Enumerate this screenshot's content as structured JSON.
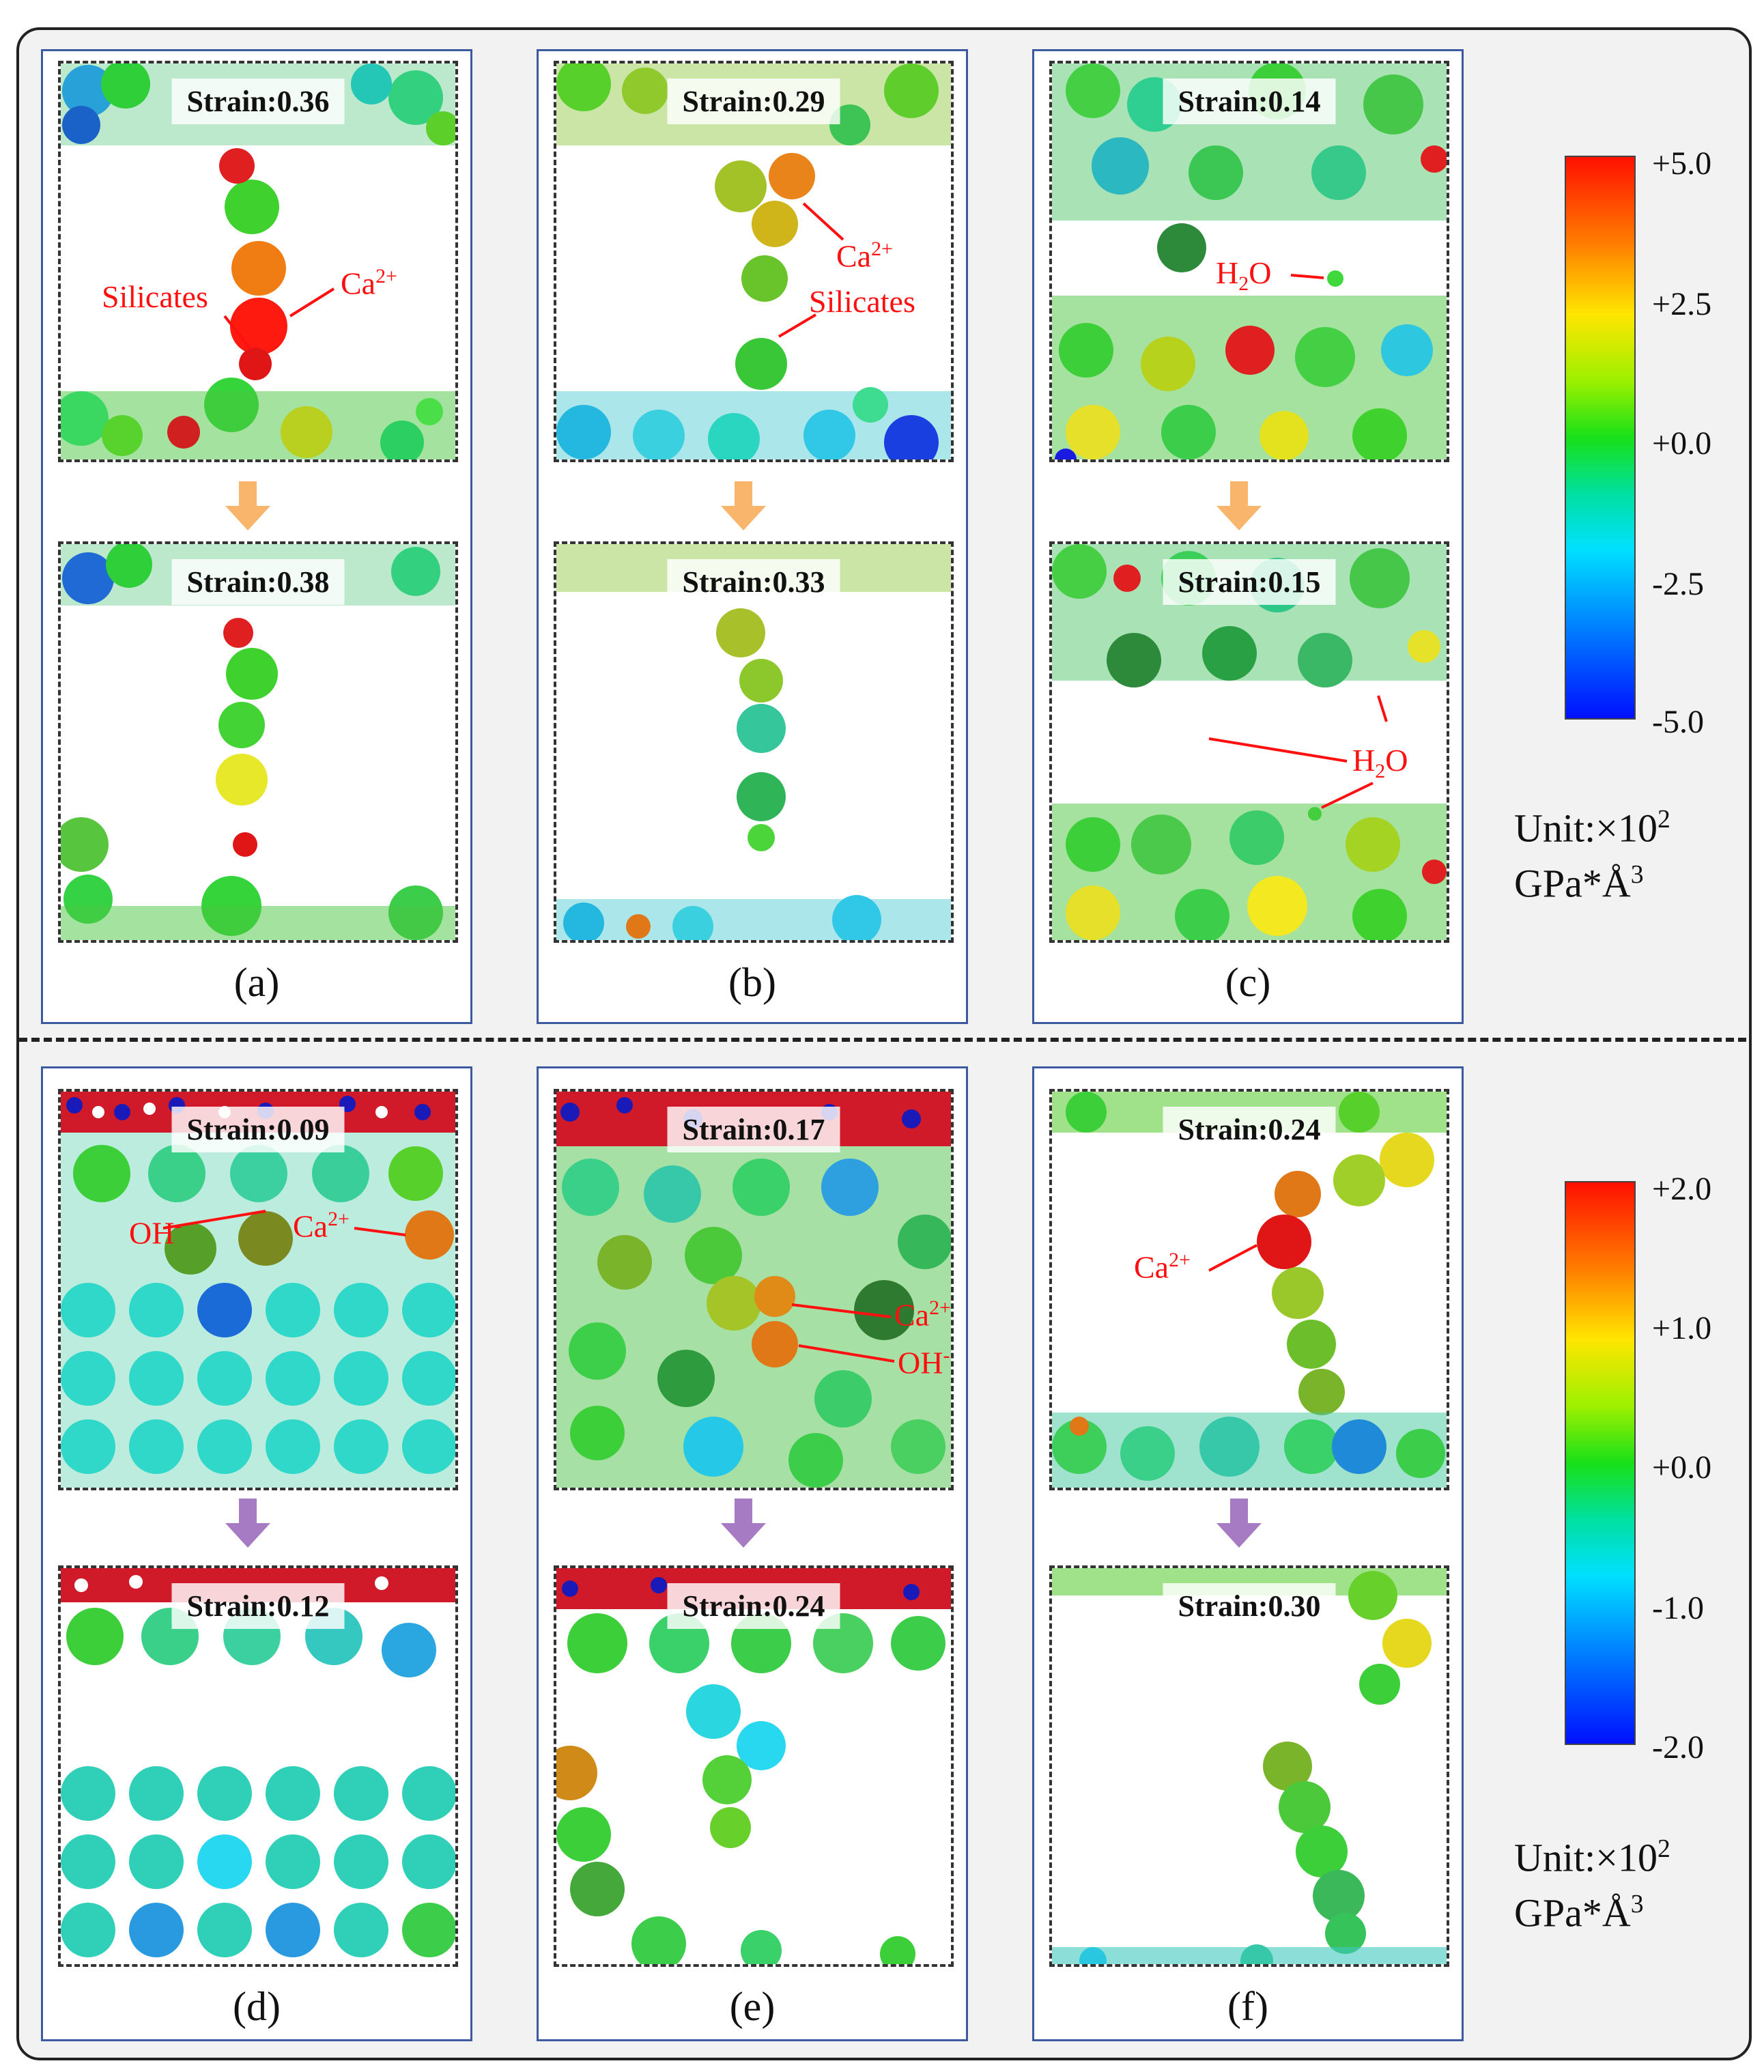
{
  "panels": {
    "a": {
      "caption": "(a)",
      "top_strain": "Strain:0.36",
      "bottom_strain": "Strain:0.38",
      "labels": {
        "silicates": "Silicates",
        "ca": "Ca",
        "ca_sup": "2+"
      }
    },
    "b": {
      "caption": "(b)",
      "top_strain": "Strain:0.29",
      "bottom_strain": "Strain:0.33",
      "labels": {
        "ca": "Ca",
        "ca_sup": "2+",
        "silicates": "Silicates"
      }
    },
    "c": {
      "caption": "(c)",
      "top_strain": "Strain:0.14",
      "bottom_strain": "Strain:0.15",
      "labels": {
        "h2o_h": "H",
        "h2o_sub": "2",
        "h2o_o": "O"
      }
    },
    "d": {
      "caption": "(d)",
      "top_strain": "Strain:0.09",
      "bottom_strain": "Strain:0.12",
      "labels": {
        "oh": "OH",
        "oh_sup": "-",
        "ca": "Ca",
        "ca_sup": "2+"
      }
    },
    "e": {
      "caption": "(e)",
      "top_strain": "Strain:0.17",
      "bottom_strain": "Strain:0.24",
      "labels": {
        "ca": "Ca",
        "ca_sup": "2+",
        "oh": "OH",
        "oh_sup": "-"
      }
    },
    "f": {
      "caption": "(f)",
      "top_strain": "Strain:0.24",
      "bottom_strain": "Strain:0.30",
      "labels": {
        "ca": "Ca",
        "ca_sup": "2+"
      }
    }
  },
  "colorbar_top": {
    "ticks": [
      "+5.0",
      "+2.5",
      "+0.0",
      "-2.5",
      "-5.0"
    ],
    "unit_line1": "Unit:×10",
    "unit_sup": "2",
    "unit_line2": "GPa*Å",
    "unit_line2_sup": "3"
  },
  "colorbar_bottom": {
    "ticks": [
      "+2.0",
      "+1.0",
      "+0.0",
      "-1.0",
      "-2.0"
    ],
    "unit_line1": "Unit:×10",
    "unit_sup": "2",
    "unit_line2": "GPa*Å",
    "unit_line2_sup": "3"
  },
  "colors": {
    "arrow_top": "#f9b56b",
    "arrow_bottom": "#a77bc4",
    "annotation": "#ff1010",
    "column_border": "#3d5aa0"
  }
}
